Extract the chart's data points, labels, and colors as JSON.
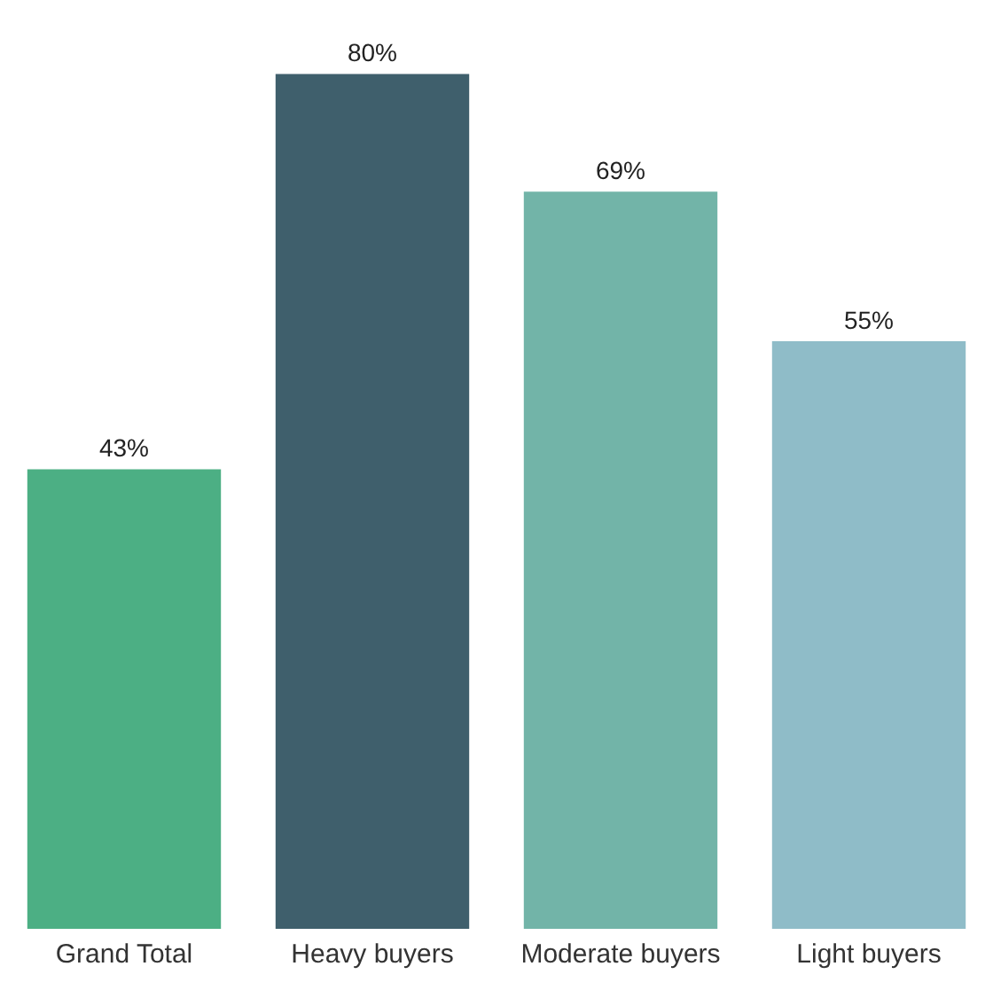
{
  "chart_data": {
    "type": "bar",
    "categories": [
      "Grand Total",
      "Heavy buyers",
      "Moderate buyers",
      "Light buyers"
    ],
    "values": [
      43,
      80,
      69,
      55
    ],
    "colors": [
      "#4caf84",
      "#3f5f6c",
      "#72b4a8",
      "#8fbcc8"
    ],
    "value_labels": [
      "43%",
      "80%",
      "69%",
      "55%"
    ],
    "grid": false,
    "legend": false
  }
}
